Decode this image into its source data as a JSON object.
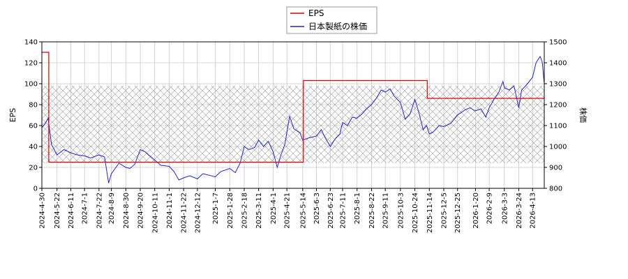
{
  "chart_data": {
    "type": "line",
    "legend": {
      "placement": "top-center",
      "entries": [
        {
          "label": "EPS",
          "color": "#dd0000"
        },
        {
          "label": "日本製紙の株価",
          "color": "#2222cc"
        }
      ]
    },
    "grid": true,
    "y_left": {
      "label": "EPS",
      "ylim": [
        0,
        140
      ],
      "ticks": [
        0,
        20,
        40,
        60,
        80,
        100,
        120,
        140
      ]
    },
    "y_right": {
      "label": "株価",
      "ylim": [
        800,
        1500
      ],
      "ticks": [
        800,
        900,
        1000,
        1100,
        1200,
        1300,
        1400,
        1500
      ]
    },
    "x": {
      "start": "2024-04-30",
      "end": "2026-04-30",
      "ticks": [
        "2024-4-30",
        "2024-5-22",
        "2024-6-11",
        "2024-7-1",
        "2024-7-22",
        "2024-8-9",
        "2024-8-30",
        "2024-9-20",
        "2024-10-11",
        "2024-11-1",
        "2024-11-22",
        "2024-12-12",
        "2025-1-7",
        "2025-1-28",
        "2025-2-18",
        "2025-3-11",
        "2025-4-1",
        "2025-4-21",
        "2025-5-14",
        "2025-6-3",
        "2025-6-23",
        "2025-7-11",
        "2025-8-1",
        "2025-8-22",
        "2025-9-11",
        "2025-10-3",
        "2025-10-24",
        "2025-11-14",
        "2025-12-5",
        "2025-12-25",
        "2026-1-20",
        "2026-2-9",
        "2026-3-3",
        "2026-3-24",
        "2026-4-13"
      ]
    },
    "hatch_band": {
      "y_from": 24,
      "y_to": 98
    },
    "eps_series": {
      "name": "EPS",
      "points": [
        [
          "2024-04-30",
          130
        ],
        [
          "2024-05-10",
          130
        ],
        [
          "2024-05-10",
          25
        ],
        [
          "2025-05-15",
          25
        ],
        [
          "2025-05-15",
          103
        ],
        [
          "2025-11-11",
          103
        ],
        [
          "2025-11-11",
          86
        ],
        [
          "2026-04-30",
          86
        ]
      ]
    },
    "price_series": {
      "name": "日本製紙の株価",
      "points": [
        [
          "2024-04-30",
          1090
        ],
        [
          "2024-05-05",
          1110
        ],
        [
          "2024-05-09",
          1135
        ],
        [
          "2024-05-14",
          1010
        ],
        [
          "2024-05-22",
          960
        ],
        [
          "2024-06-01",
          985
        ],
        [
          "2024-06-11",
          970
        ],
        [
          "2024-06-20",
          960
        ],
        [
          "2024-07-01",
          955
        ],
        [
          "2024-07-10",
          945
        ],
        [
          "2024-07-22",
          960
        ],
        [
          "2024-07-30",
          950
        ],
        [
          "2024-08-05",
          825
        ],
        [
          "2024-08-09",
          870
        ],
        [
          "2024-08-20",
          920
        ],
        [
          "2024-08-30",
          900
        ],
        [
          "2024-09-05",
          895
        ],
        [
          "2024-09-12",
          915
        ],
        [
          "2024-09-20",
          985
        ],
        [
          "2024-09-27",
          975
        ],
        [
          "2024-10-04",
          955
        ],
        [
          "2024-10-11",
          935
        ],
        [
          "2024-10-20",
          910
        ],
        [
          "2024-11-01",
          905
        ],
        [
          "2024-11-08",
          880
        ],
        [
          "2024-11-15",
          840
        ],
        [
          "2024-11-22",
          850
        ],
        [
          "2024-12-01",
          860
        ],
        [
          "2024-12-12",
          845
        ],
        [
          "2024-12-20",
          870
        ],
        [
          "2025-01-07",
          855
        ],
        [
          "2025-01-15",
          880
        ],
        [
          "2025-01-28",
          895
        ],
        [
          "2025-02-05",
          875
        ],
        [
          "2025-02-12",
          920
        ],
        [
          "2025-02-18",
          1000
        ],
        [
          "2025-02-25",
          985
        ],
        [
          "2025-03-05",
          995
        ],
        [
          "2025-03-11",
          1030
        ],
        [
          "2025-03-18",
          1000
        ],
        [
          "2025-03-25",
          1025
        ],
        [
          "2025-04-01",
          975
        ],
        [
          "2025-04-07",
          900
        ],
        [
          "2025-04-12",
          955
        ],
        [
          "2025-04-18",
          1010
        ],
        [
          "2025-04-25",
          1145
        ],
        [
          "2025-05-01",
          1085
        ],
        [
          "2025-05-10",
          1065
        ],
        [
          "2025-05-14",
          1030
        ],
        [
          "2025-05-22",
          1040
        ],
        [
          "2025-06-03",
          1050
        ],
        [
          "2025-06-10",
          1080
        ],
        [
          "2025-06-16",
          1040
        ],
        [
          "2025-06-23",
          1000
        ],
        [
          "2025-07-01",
          1040
        ],
        [
          "2025-07-07",
          1060
        ],
        [
          "2025-07-11",
          1115
        ],
        [
          "2025-07-18",
          1100
        ],
        [
          "2025-07-25",
          1140
        ],
        [
          "2025-08-01",
          1135
        ],
        [
          "2025-08-08",
          1155
        ],
        [
          "2025-08-15",
          1180
        ],
        [
          "2025-08-22",
          1200
        ],
        [
          "2025-08-29",
          1230
        ],
        [
          "2025-09-05",
          1270
        ],
        [
          "2025-09-11",
          1260
        ],
        [
          "2025-09-18",
          1275
        ],
        [
          "2025-09-24",
          1240
        ],
        [
          "2025-10-03",
          1210
        ],
        [
          "2025-10-10",
          1130
        ],
        [
          "2025-10-17",
          1155
        ],
        [
          "2025-10-24",
          1225
        ],
        [
          "2025-10-30",
          1160
        ],
        [
          "2025-11-05",
          1080
        ],
        [
          "2025-11-10",
          1100
        ],
        [
          "2025-11-14",
          1060
        ],
        [
          "2025-11-20",
          1070
        ],
        [
          "2025-11-28",
          1100
        ],
        [
          "2025-12-05",
          1095
        ],
        [
          "2025-12-15",
          1110
        ],
        [
          "2025-12-25",
          1150
        ],
        [
          "2026-01-05",
          1175
        ],
        [
          "2026-01-12",
          1185
        ],
        [
          "2026-01-20",
          1170
        ],
        [
          "2026-01-28",
          1180
        ],
        [
          "2026-02-04",
          1140
        ],
        [
          "2026-02-09",
          1185
        ],
        [
          "2026-02-16",
          1225
        ],
        [
          "2026-02-23",
          1260
        ],
        [
          "2026-03-01",
          1310
        ],
        [
          "2026-03-03",
          1280
        ],
        [
          "2026-03-10",
          1270
        ],
        [
          "2026-03-17",
          1290
        ],
        [
          "2026-03-24",
          1185
        ],
        [
          "2026-03-28",
          1270
        ],
        [
          "2026-04-03",
          1290
        ],
        [
          "2026-04-08",
          1310
        ],
        [
          "2026-04-13",
          1330
        ],
        [
          "2026-04-18",
          1400
        ],
        [
          "2026-04-24",
          1430
        ],
        [
          "2026-04-27",
          1405
        ],
        [
          "2026-04-30",
          1300
        ]
      ]
    }
  }
}
